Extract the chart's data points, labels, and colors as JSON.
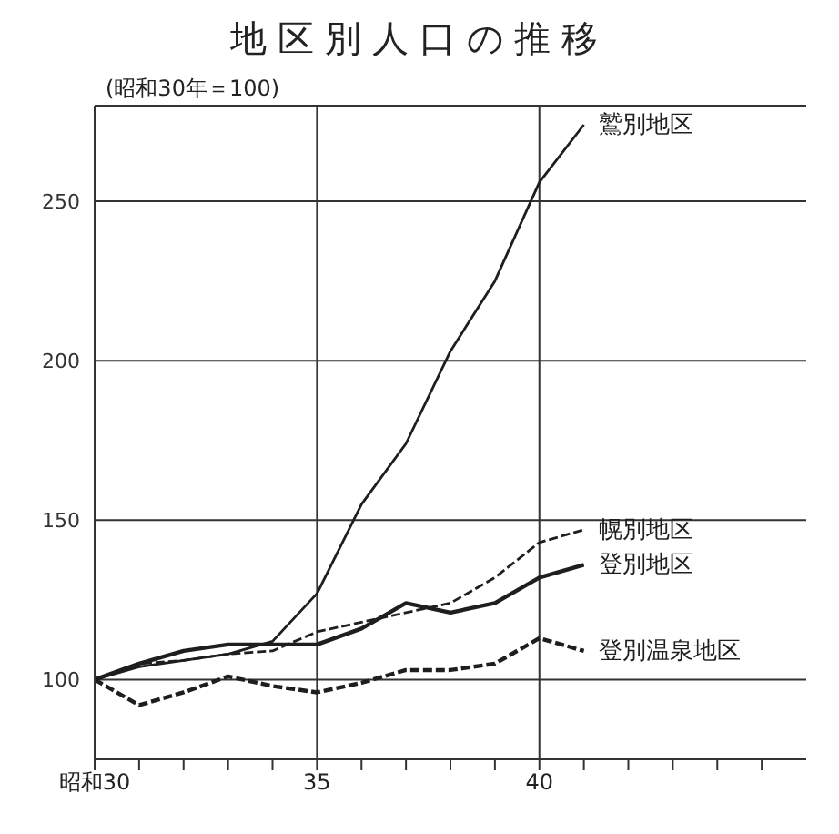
{
  "chart_data": {
    "type": "line",
    "title": "地区別人口の推移",
    "annotations": [
      "(昭和30年＝100)"
    ],
    "x": [
      30,
      31,
      32,
      33,
      34,
      35,
      36,
      37,
      38,
      39,
      40,
      41
    ],
    "series": [
      {
        "name": "鷲別地区",
        "color": "#1e1e1e",
        "line_style": "solid",
        "values": [
          100,
          104,
          106,
          108,
          112,
          127,
          155,
          174,
          203,
          225,
          256,
          274
        ]
      },
      {
        "name": "幌別地区",
        "color": "#1e1e1e",
        "line_style": "dashed",
        "values": [
          100,
          105,
          106,
          108,
          109,
          115,
          118,
          121,
          124,
          132,
          143,
          147
        ]
      },
      {
        "name": "登別地区",
        "color": "#1e1e1e",
        "line_style": "solid",
        "values": [
          100,
          105,
          109,
          111,
          111,
          111,
          116,
          124,
          121,
          124,
          132,
          136
        ]
      },
      {
        "name": "登別温泉地区",
        "color": "#1e1e1e",
        "line_style": "dashed",
        "values": [
          100,
          92,
          96,
          101,
          98,
          96,
          99,
          103,
          103,
          105,
          113,
          109
        ]
      }
    ],
    "xlim": [
      30,
      46
    ],
    "xticks": [
      {
        "value": 30,
        "label": "昭和30"
      },
      {
        "value": 31,
        "label": null
      },
      {
        "value": 32,
        "label": null
      },
      {
        "value": 33,
        "label": null
      },
      {
        "value": 34,
        "label": null
      },
      35,
      {
        "value": 36,
        "label": null
      },
      {
        "value": 37,
        "label": null
      },
      {
        "value": 38,
        "label": null
      },
      {
        "value": 39,
        "label": null
      },
      40,
      {
        "value": 41,
        "label": null
      },
      {
        "value": 42,
        "label": null
      },
      {
        "value": 43,
        "label": null
      },
      {
        "value": 44,
        "label": null
      },
      {
        "value": 45,
        "label": null
      }
    ],
    "ylim": [
      75,
      280
    ],
    "yticks": [
      100,
      150,
      200,
      250
    ],
    "grid": true,
    "marker": "none"
  }
}
